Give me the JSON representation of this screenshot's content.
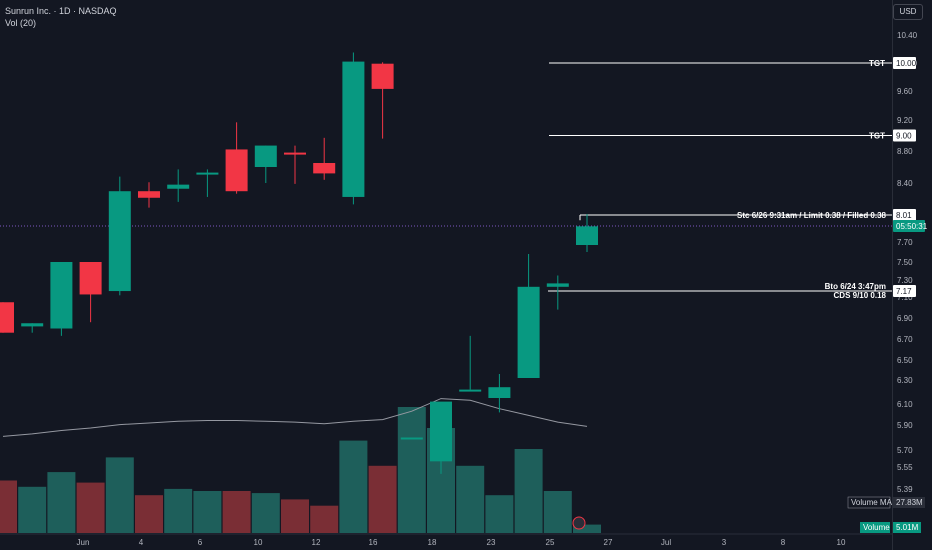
{
  "header": {
    "symbol_line": "Sunrun Inc. · 1D · NASDAQ",
    "volume_line": "Vol (20)",
    "currency": "USD"
  },
  "chart_data": {
    "type": "candlestick",
    "title": "Sunrun Inc. · 1D · NASDAQ",
    "x_tick_labels": [
      "Jun",
      "4",
      "6",
      "10",
      "12",
      "16",
      "18",
      "23",
      "25",
      "27",
      "Jul",
      "3",
      "8",
      "10"
    ],
    "y_tick_labels": [
      "10.40",
      "10.00",
      "9.60",
      "9.20",
      "8.80",
      "8.40",
      "8.01",
      "7.70",
      "7.50",
      "7.30",
      "7.10",
      "6.90",
      "6.70",
      "6.50",
      "6.30",
      "6.10",
      "5.90",
      "5.70",
      "5.55",
      "5.39"
    ],
    "candles": [
      {
        "open": 7.05,
        "high": 7.05,
        "low": 6.76,
        "close": 6.76,
        "volume": 12.5
      },
      {
        "open": 6.82,
        "high": 6.85,
        "low": 6.76,
        "close": 6.85,
        "volume": 11.0
      },
      {
        "open": 6.8,
        "high": 7.5,
        "low": 6.73,
        "close": 7.5,
        "volume": 14.5
      },
      {
        "open": 7.5,
        "high": 7.5,
        "low": 6.86,
        "close": 7.13,
        "volume": 12.0
      },
      {
        "open": 7.17,
        "high": 8.48,
        "low": 7.12,
        "close": 8.3,
        "volume": 18.0
      },
      {
        "open": 8.3,
        "high": 8.41,
        "low": 8.1,
        "close": 8.22,
        "volume": 9.0
      },
      {
        "open": 8.33,
        "high": 8.57,
        "low": 8.17,
        "close": 8.38,
        "volume": 10.5
      },
      {
        "open": 8.51,
        "high": 8.57,
        "low": 8.23,
        "close": 8.53,
        "volume": 10.0
      },
      {
        "open": 8.82,
        "high": 9.17,
        "low": 8.27,
        "close": 8.3,
        "volume": 10.0
      },
      {
        "open": 8.6,
        "high": 8.87,
        "low": 8.4,
        "close": 8.87,
        "volume": 9.5
      },
      {
        "open": 8.78,
        "high": 8.87,
        "low": 8.39,
        "close": 8.77,
        "volume": 8.0
      },
      {
        "open": 8.65,
        "high": 8.97,
        "low": 8.44,
        "close": 8.52,
        "volume": 6.5
      },
      {
        "open": 8.23,
        "high": 10.15,
        "low": 8.14,
        "close": 10.02,
        "volume": 22.0
      },
      {
        "open": 9.99,
        "high": 10.01,
        "low": 8.96,
        "close": 9.63,
        "volume": 16.0
      },
      {
        "open": 5.8,
        "high": 5.8,
        "low": 5.8,
        "close": 5.8,
        "volume": 30.0
      },
      {
        "open": 5.6,
        "high": 6.1,
        "low": 5.5,
        "close": 6.12,
        "volume": 25.0
      },
      {
        "open": 6.22,
        "high": 6.73,
        "low": 6.22,
        "close": 6.22,
        "volume": 16.0
      },
      {
        "open": 6.15,
        "high": 6.36,
        "low": 6.02,
        "close": 6.24,
        "volume": 9.0
      },
      {
        "open": 6.32,
        "high": 7.58,
        "low": 6.32,
        "close": 7.22,
        "volume": 20.0
      },
      {
        "open": 7.22,
        "high": 7.35,
        "low": 6.98,
        "close": 7.26,
        "volume": 10.0
      },
      {
        "open": 7.67,
        "high": 8.02,
        "low": 7.6,
        "close": 7.88,
        "volume": 2.0
      }
    ],
    "horizontal_lines": [
      {
        "label": "TGT",
        "value": 10.0
      },
      {
        "label": "TGT",
        "value": 9.0
      },
      {
        "label": "Stc 6/26 9:31am / Limit 0.38 / Filled 0.38",
        "value": 8.01
      },
      {
        "label": "Bto 6/24 3:47pm",
        "label2": "CDS 9/10 0.18",
        "value": 7.17
      }
    ],
    "price_labels": {
      "tgt_high": "10.00",
      "tgt_low": "9.00",
      "stc": "8.01",
      "countdown": "05:50:31",
      "bto": "7.17"
    },
    "volume_ma_label": "Volume MA",
    "volume_ma_value": "27.83M",
    "volume_label": "Volume",
    "volume_value": "5.01M",
    "colors": {
      "up": "#089981",
      "down": "#f23645",
      "up_vol": "#1e5f5b",
      "down_vol": "#7a2e35",
      "ma": "#9598a1",
      "bg": "#131722"
    }
  }
}
